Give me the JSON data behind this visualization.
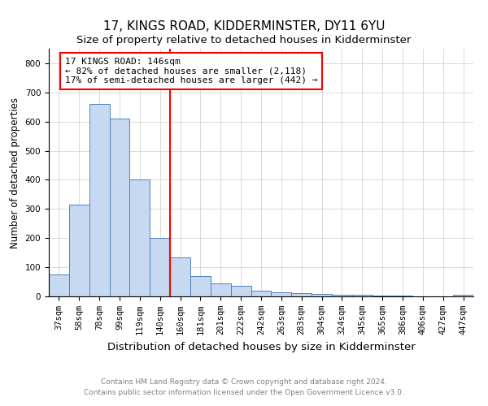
{
  "title": "17, KINGS ROAD, KIDDERMINSTER, DY11 6YU",
  "subtitle": "Size of property relative to detached houses in Kidderminster",
  "xlabel": "Distribution of detached houses by size in Kidderminster",
  "ylabel": "Number of detached properties",
  "footer_line1": "Contains HM Land Registry data © Crown copyright and database right 2024.",
  "footer_line2": "Contains public sector information licensed under the Open Government Licence v3.0.",
  "bar_labels": [
    "37sqm",
    "58sqm",
    "78sqm",
    "99sqm",
    "119sqm",
    "140sqm",
    "160sqm",
    "181sqm",
    "201sqm",
    "222sqm",
    "242sqm",
    "263sqm",
    "283sqm",
    "304sqm",
    "324sqm",
    "345sqm",
    "365sqm",
    "386sqm",
    "406sqm",
    "427sqm",
    "447sqm"
  ],
  "bar_values": [
    75,
    315,
    660,
    610,
    400,
    200,
    135,
    70,
    45,
    37,
    20,
    13,
    10,
    7,
    5,
    5,
    3,
    2,
    1,
    1,
    6
  ],
  "bar_color": "#c6d9f0",
  "bar_edge_color": "#4f81bd",
  "red_line_index": 5,
  "annotation_title": "17 KINGS ROAD: 146sqm",
  "annotation_line1": "← 82% of detached houses are smaller (2,118)",
  "annotation_line2": "17% of semi-detached houses are larger (442) →",
  "annotation_box_color": "white",
  "annotation_box_edge": "red",
  "red_line_color": "red",
  "ylim": [
    0,
    850
  ],
  "yticks": [
    0,
    100,
    200,
    300,
    400,
    500,
    600,
    700,
    800
  ],
  "title_fontsize": 11,
  "subtitle_fontsize": 9.5,
  "xlabel_fontsize": 9.5,
  "ylabel_fontsize": 8.5,
  "tick_fontsize": 7.5,
  "annotation_fontsize": 8,
  "footer_fontsize": 6.5
}
